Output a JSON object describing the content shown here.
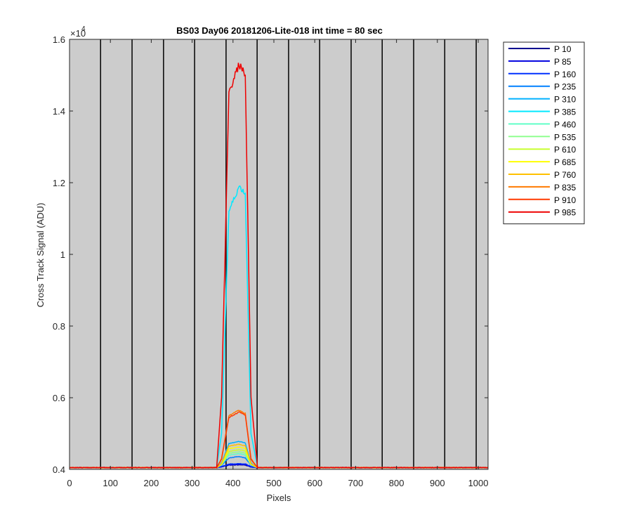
{
  "chart_data": {
    "type": "line",
    "title": "BS03 Day06 20181206-Lite-018 int time = 80 sec",
    "xlabel": "Pixels",
    "ylabel": "Cross Track Signal (ADU)",
    "xlim": [
      0,
      1024
    ],
    "ylim": [
      0.4,
      1.6
    ],
    "y_exponent_label": "×10",
    "y_exponent_power": "4",
    "x_ticks": [
      0,
      100,
      200,
      300,
      400,
      500,
      600,
      700,
      800,
      900,
      1000
    ],
    "x_tick_labels": [
      "0",
      "100",
      "200",
      "300",
      "400",
      "500",
      "600",
      "700",
      "800",
      "900",
      "1000"
    ],
    "y_ticks": [
      0.4,
      0.6,
      0.8,
      1.0,
      1.2,
      1.4,
      1.6
    ],
    "y_tick_labels": [
      "0.4",
      "0.6",
      "0.8",
      "1",
      "1.2",
      "1.4",
      "1.6"
    ],
    "background_color": "#cccccc",
    "vertical_lines_x": [
      76,
      153,
      230,
      306,
      383,
      459,
      536,
      612,
      689,
      765,
      842,
      918,
      995
    ],
    "legend_placement": "outside-right",
    "grid": false,
    "baseline": 0.405,
    "signal_region": [
      368,
      445
    ],
    "series": [
      {
        "name": "P 10",
        "color": "#00008f",
        "values": [
          0.405,
          0.405,
          0.407,
          0.412,
          0.413,
          0.412,
          0.407,
          0.405,
          0.405
        ]
      },
      {
        "name": "P 85",
        "color": "#0000df",
        "values": [
          0.405,
          0.405,
          0.407,
          0.413,
          0.414,
          0.413,
          0.407,
          0.405,
          0.405
        ]
      },
      {
        "name": "P 160",
        "color": "#0030ff",
        "values": [
          0.405,
          0.405,
          0.408,
          0.415,
          0.416,
          0.415,
          0.408,
          0.405,
          0.405
        ]
      },
      {
        "name": "P 235",
        "color": "#0080ff",
        "values": [
          0.405,
          0.405,
          0.412,
          0.432,
          0.436,
          0.432,
          0.412,
          0.405,
          0.405
        ]
      },
      {
        "name": "P 310",
        "color": "#00b0ff",
        "values": [
          0.405,
          0.405,
          0.418,
          0.472,
          0.478,
          0.474,
          0.418,
          0.405,
          0.405
        ]
      },
      {
        "name": "P 385",
        "color": "#00e8ff",
        "values": [
          0.405,
          0.405,
          0.5,
          1.12,
          1.19,
          1.17,
          0.5,
          0.405,
          0.405
        ]
      },
      {
        "name": "P 460",
        "color": "#60ffc8",
        "values": [
          0.405,
          0.405,
          0.413,
          0.44,
          0.444,
          0.44,
          0.413,
          0.405,
          0.405
        ]
      },
      {
        "name": "P 535",
        "color": "#90ff90",
        "values": [
          0.405,
          0.405,
          0.413,
          0.445,
          0.449,
          0.445,
          0.413,
          0.405,
          0.405
        ]
      },
      {
        "name": "P 610",
        "color": "#c8ff30",
        "values": [
          0.405,
          0.405,
          0.414,
          0.45,
          0.455,
          0.451,
          0.414,
          0.405,
          0.405
        ]
      },
      {
        "name": "P 685",
        "color": "#ffff00",
        "values": [
          0.405,
          0.405,
          0.415,
          0.458,
          0.462,
          0.458,
          0.415,
          0.405,
          0.405
        ]
      },
      {
        "name": "P 760",
        "color": "#ffc000",
        "values": [
          0.405,
          0.405,
          0.416,
          0.465,
          0.47,
          0.466,
          0.416,
          0.405,
          0.405
        ]
      },
      {
        "name": "P 835",
        "color": "#ff7a00",
        "values": [
          0.405,
          0.405,
          0.43,
          0.55,
          0.565,
          0.556,
          0.43,
          0.405,
          0.405
        ]
      },
      {
        "name": "P 910",
        "color": "#ff3a00",
        "values": [
          0.405,
          0.405,
          0.428,
          0.545,
          0.56,
          0.552,
          0.428,
          0.405,
          0.405
        ]
      },
      {
        "name": "P 985",
        "color": "#ee0000",
        "values": [
          0.405,
          0.405,
          0.6,
          1.45,
          1.53,
          1.5,
          0.6,
          0.405,
          0.405
        ]
      }
    ],
    "x": [
      0,
      360,
      372,
      390,
      415,
      430,
      444,
      460,
      1024
    ]
  }
}
